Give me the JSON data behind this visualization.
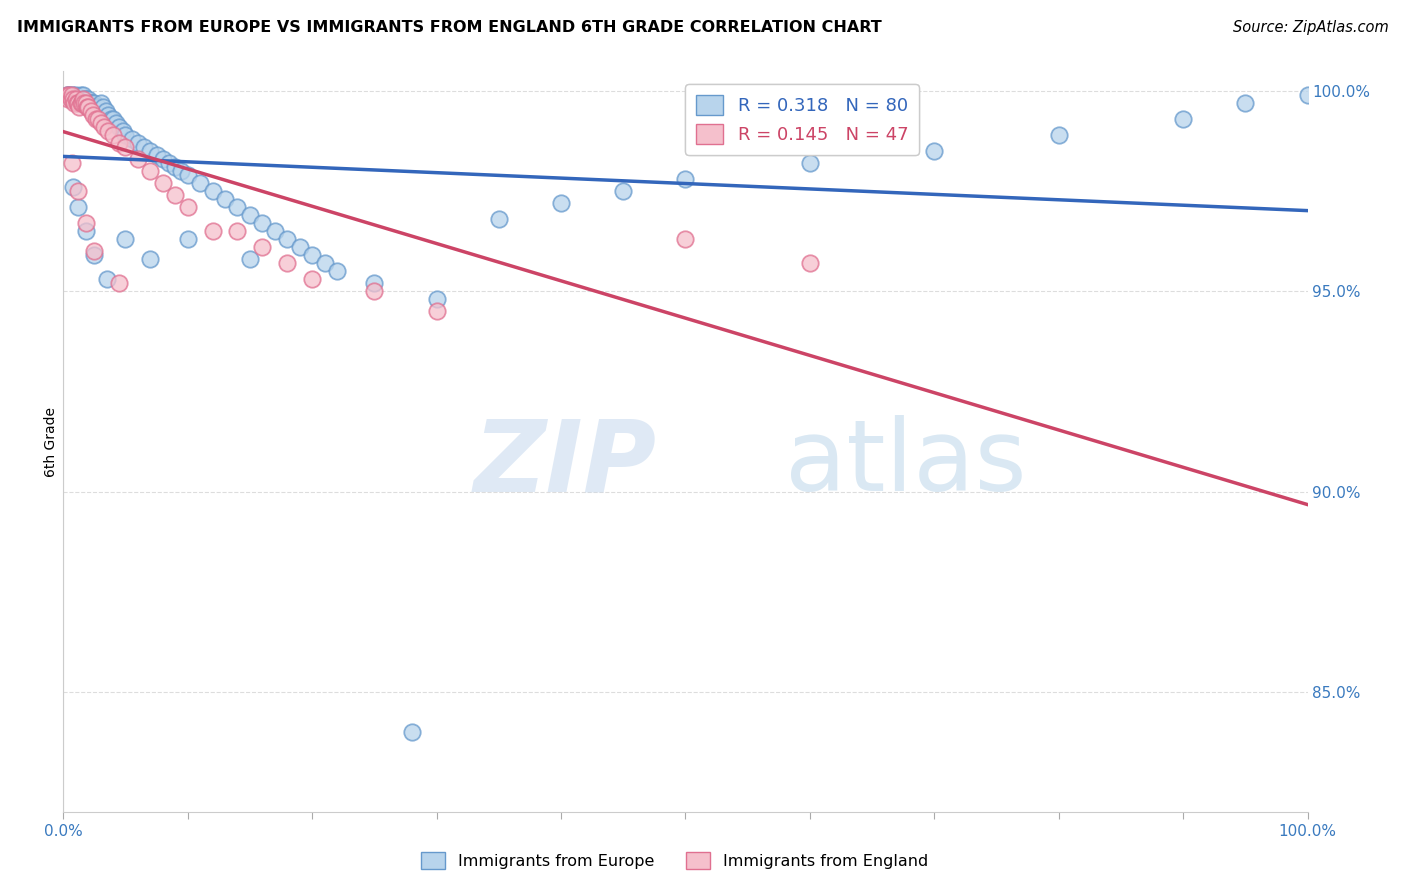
{
  "title": "IMMIGRANTS FROM EUROPE VS IMMIGRANTS FROM ENGLAND 6TH GRADE CORRELATION CHART",
  "source": "Source: ZipAtlas.com",
  "ylabel": "6th Grade",
  "xlim": [
    0.0,
    1.0
  ],
  "ylim": [
    0.82,
    1.005
  ],
  "y_ticks_right": [
    0.85,
    0.9,
    0.95,
    1.0
  ],
  "y_tick_labels_right": [
    "85.0%",
    "90.0%",
    "95.0%",
    "100.0%"
  ],
  "legend_europe": "Immigrants from Europe",
  "legend_england": "Immigrants from England",
  "R_europe": 0.318,
  "N_europe": 80,
  "R_england": 0.145,
  "N_england": 47,
  "blue_dot_face": "#b8d4ec",
  "blue_dot_edge": "#6699cc",
  "blue_line_color": "#3366bb",
  "pink_dot_face": "#f5c0cc",
  "pink_dot_edge": "#e07090",
  "pink_line_color": "#cc4466",
  "grid_color": "#dddddd",
  "europe_x": [
    0.003,
    0.004,
    0.005,
    0.006,
    0.007,
    0.008,
    0.009,
    0.01,
    0.011,
    0.012,
    0.013,
    0.014,
    0.015,
    0.016,
    0.017,
    0.018,
    0.019,
    0.02,
    0.021,
    0.022,
    0.023,
    0.024,
    0.025,
    0.026,
    0.027,
    0.028,
    0.03,
    0.032,
    0.034,
    0.036,
    0.038,
    0.04,
    0.042,
    0.045,
    0.048,
    0.05,
    0.055,
    0.06,
    0.065,
    0.07,
    0.075,
    0.08,
    0.085,
    0.09,
    0.095,
    0.1,
    0.11,
    0.12,
    0.13,
    0.14,
    0.15,
    0.16,
    0.17,
    0.18,
    0.19,
    0.2,
    0.21,
    0.22,
    0.25,
    0.3,
    0.35,
    0.4,
    0.45,
    0.5,
    0.6,
    0.7,
    0.8,
    0.9,
    0.95,
    1.0,
    0.008,
    0.012,
    0.018,
    0.025,
    0.035,
    0.05,
    0.07,
    0.1,
    0.15,
    0.28
  ],
  "europe_y": [
    0.999,
    0.999,
    0.999,
    0.998,
    0.999,
    0.999,
    0.998,
    0.999,
    0.998,
    0.998,
    0.998,
    0.999,
    0.998,
    0.999,
    0.998,
    0.998,
    0.997,
    0.998,
    0.997,
    0.997,
    0.997,
    0.996,
    0.997,
    0.996,
    0.996,
    0.996,
    0.997,
    0.996,
    0.995,
    0.994,
    0.993,
    0.993,
    0.992,
    0.991,
    0.99,
    0.989,
    0.988,
    0.987,
    0.986,
    0.985,
    0.984,
    0.983,
    0.982,
    0.981,
    0.98,
    0.979,
    0.977,
    0.975,
    0.973,
    0.971,
    0.969,
    0.967,
    0.965,
    0.963,
    0.961,
    0.959,
    0.957,
    0.955,
    0.952,
    0.948,
    0.968,
    0.972,
    0.975,
    0.978,
    0.982,
    0.985,
    0.989,
    0.993,
    0.997,
    0.999,
    0.976,
    0.971,
    0.965,
    0.959,
    0.953,
    0.963,
    0.958,
    0.963,
    0.958,
    0.84
  ],
  "england_x": [
    0.003,
    0.004,
    0.005,
    0.006,
    0.007,
    0.008,
    0.009,
    0.01,
    0.011,
    0.012,
    0.013,
    0.014,
    0.015,
    0.016,
    0.017,
    0.018,
    0.019,
    0.02,
    0.022,
    0.024,
    0.026,
    0.028,
    0.03,
    0.033,
    0.036,
    0.04,
    0.045,
    0.05,
    0.06,
    0.07,
    0.08,
    0.09,
    0.1,
    0.12,
    0.14,
    0.16,
    0.18,
    0.2,
    0.25,
    0.3,
    0.5,
    0.6,
    0.007,
    0.012,
    0.018,
    0.025,
    0.045
  ],
  "england_y": [
    0.999,
    0.998,
    0.999,
    0.998,
    0.999,
    0.998,
    0.997,
    0.998,
    0.997,
    0.997,
    0.996,
    0.997,
    0.997,
    0.998,
    0.997,
    0.997,
    0.996,
    0.996,
    0.995,
    0.994,
    0.993,
    0.993,
    0.992,
    0.991,
    0.99,
    0.989,
    0.987,
    0.986,
    0.983,
    0.98,
    0.977,
    0.974,
    0.971,
    0.965,
    0.965,
    0.961,
    0.957,
    0.953,
    0.95,
    0.945,
    0.963,
    0.957,
    0.982,
    0.975,
    0.967,
    0.96,
    0.952
  ]
}
